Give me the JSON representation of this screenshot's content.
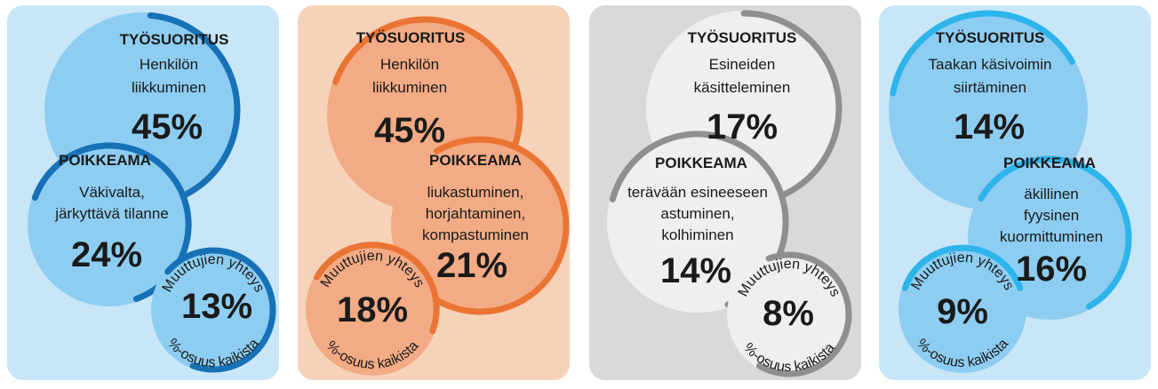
{
  "panels": [
    {
      "id": "panel-1",
      "colors": {
        "bg": "#c8e6f8",
        "fill": "#8dcdf1",
        "stroke": "#1771b6",
        "text": "#1a1a1a"
      },
      "work": {
        "heading": "TYÖSUORITUS",
        "lines": [
          "Henkilön",
          "liikkuminen"
        ],
        "value": "45%"
      },
      "deviation": {
        "heading": "POIKKEAMA",
        "lines": [
          "Väkivalta,",
          "järkyttävä tilanne"
        ],
        "value": "24%"
      },
      "combo": {
        "heading": "Muuttujien yhteys",
        "value": "13%",
        "footer": "%-osuus kaikista"
      }
    },
    {
      "id": "panel-2",
      "colors": {
        "bg": "#f6d2b9",
        "fill": "#f2ab85",
        "stroke": "#ea7433",
        "text": "#1a1a1a"
      },
      "work": {
        "heading": "TYÖSUORITUS",
        "lines": [
          "Henkilön",
          "liikkuminen"
        ],
        "value": "45%"
      },
      "deviation": {
        "heading": "POIKKEAMA",
        "lines": [
          "liukastuminen,",
          "horjahtaminen,",
          "kompastuminen"
        ],
        "value": "21%"
      },
      "combo": {
        "heading": "Muuttujien yhteys",
        "value": "18%",
        "footer": "%-osuus kaikista"
      }
    },
    {
      "id": "panel-3",
      "colors": {
        "bg": "#d9d9d9",
        "fill": "#efefef",
        "stroke": "#8f8f8f",
        "text": "#1a1a1a"
      },
      "work": {
        "heading": "TYÖSUORITUS",
        "lines": [
          "Esineiden",
          "käsitteleminen"
        ],
        "value": "17%"
      },
      "deviation": {
        "heading": "POIKKEAMA",
        "lines": [
          "terävään esineeseen",
          "astuminen,",
          "kolhiminen"
        ],
        "value": "14%"
      },
      "combo": {
        "heading": "Muuttujien yhteys",
        "value": "8%",
        "footer": "%-osuus kaikista"
      }
    },
    {
      "id": "panel-4",
      "colors": {
        "bg": "#c8e6f8",
        "fill": "#8dcdf1",
        "stroke": "#2db4ea",
        "text": "#1a1a1a"
      },
      "work": {
        "heading": "TYÖSUORITUS",
        "lines": [
          "Taakan käsivoimin",
          "siirtäminen"
        ],
        "value": "14%"
      },
      "deviation": {
        "heading": "POIKKEAMA",
        "lines": [
          "äkillinen",
          "fyysinen",
          "kuormittuminen"
        ],
        "value": "16%"
      },
      "combo": {
        "heading": "Muuttujien yhteys",
        "value": "9%",
        "footer": "%-osuus kaikista"
      }
    }
  ]
}
